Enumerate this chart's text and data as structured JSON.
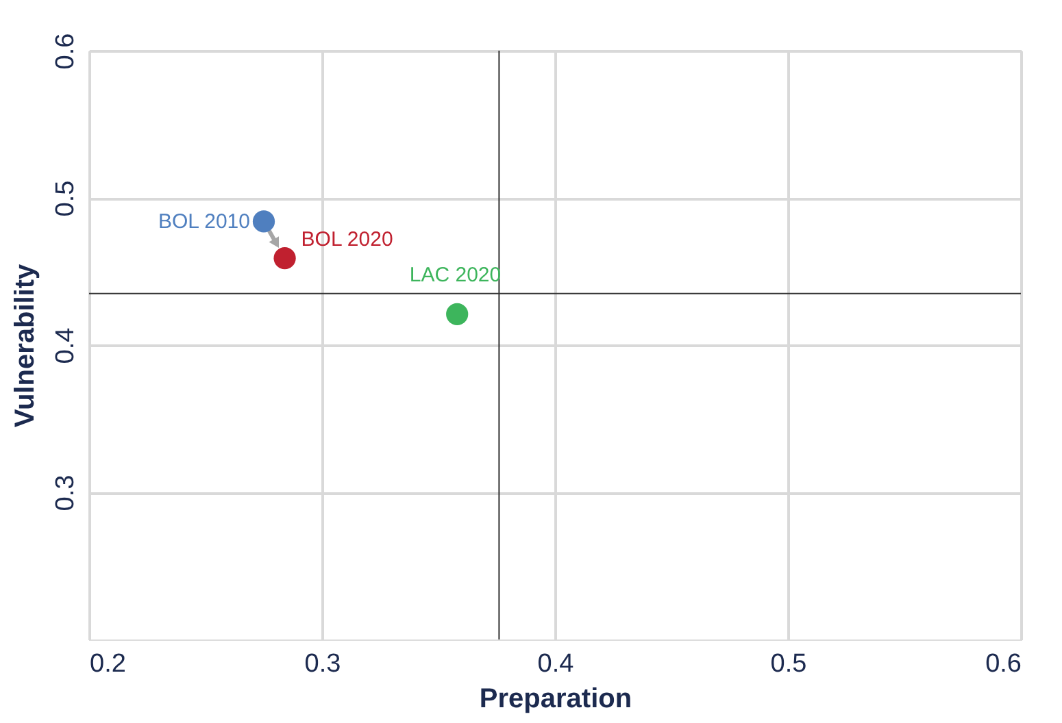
{
  "chart_data": {
    "type": "scatter",
    "xlabel": "Preparation",
    "ylabel": "Vulnerability",
    "xlim": [
      0.2,
      0.6
    ],
    "xticks": [
      0.2,
      0.3,
      0.4,
      0.5,
      0.6
    ],
    "ylim": [
      0.2,
      0.6
    ],
    "yticks": [
      0.3,
      0.4,
      0.5,
      0.6
    ],
    "grid": true,
    "marker": "circle",
    "series": [
      {
        "name": "BOL 2010",
        "color": "#4f7fbf",
        "x": [
          0.275
        ],
        "values": [
          0.484
        ]
      },
      {
        "name": "BOL 2020",
        "color": "#c0202f",
        "x": [
          0.284
        ],
        "values": [
          0.459
        ]
      },
      {
        "name": "LAC 2020",
        "color": "#3db55c",
        "x": [
          0.358
        ],
        "values": [
          0.421
        ]
      }
    ],
    "ref_lines": [
      {
        "axis": "x",
        "value": 0.376,
        "color": "#333333"
      },
      {
        "axis": "y",
        "value": 0.435,
        "color": "#333333"
      }
    ]
  }
}
